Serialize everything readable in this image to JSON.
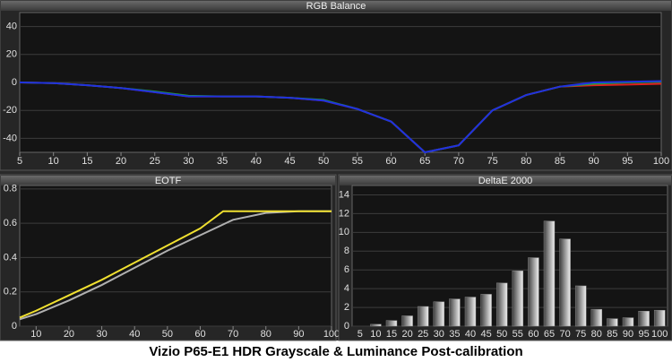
{
  "caption": "Vizio P65-E1 HDR Grayscale & Luminance Post-calibration",
  "chart_data": [
    {
      "type": "line",
      "title": "RGB Balance",
      "x": [
        5,
        10,
        15,
        20,
        25,
        30,
        35,
        40,
        45,
        50,
        55,
        60,
        65,
        70,
        75,
        80,
        85,
        90,
        95,
        100
      ],
      "series": [
        {
          "color": "#e02020",
          "values": [
            0,
            -0.5,
            -2,
            -4,
            -7,
            -10,
            -10,
            -10,
            -11,
            -13,
            -19,
            -28,
            -50,
            -45,
            -20,
            -9,
            -3,
            -2,
            -1.5,
            -1
          ]
        },
        {
          "color": "#20a040",
          "values": [
            0,
            -0.5,
            -2,
            -4,
            -6.5,
            -9.5,
            -10,
            -10,
            -11,
            -12.5,
            -19,
            -28,
            -50,
            -45,
            -20,
            -9,
            -3,
            -1,
            0,
            0.5
          ]
        },
        {
          "color": "#2030e0",
          "values": [
            0,
            -0.5,
            -2,
            -4,
            -7,
            -10,
            -10,
            -10,
            -11,
            -13,
            -19,
            -28,
            -50,
            -45,
            -20,
            -9,
            -3,
            0,
            0.5,
            1
          ]
        }
      ],
      "xlim": [
        5,
        100
      ],
      "xticks": [
        5,
        10,
        15,
        20,
        25,
        30,
        35,
        40,
        45,
        50,
        55,
        60,
        65,
        70,
        75,
        80,
        85,
        90,
        95,
        100
      ],
      "ylim": [
        -50,
        50
      ],
      "yticks": [
        -40,
        -20,
        0,
        20,
        40
      ],
      "grid": true
    },
    {
      "type": "line",
      "title": "EOTF",
      "series": [
        {
          "color": "#b0b0b0",
          "x": [
            5,
            10,
            20,
            30,
            40,
            50,
            60,
            70,
            80,
            90,
            100
          ],
          "values": [
            0.04,
            0.07,
            0.15,
            0.24,
            0.34,
            0.44,
            0.53,
            0.62,
            0.66,
            0.67,
            0.67
          ]
        },
        {
          "color": "#f0e030",
          "x": [
            5,
            10,
            20,
            30,
            40,
            50,
            60,
            67,
            70,
            80,
            90,
            100
          ],
          "values": [
            0.05,
            0.09,
            0.18,
            0.27,
            0.37,
            0.47,
            0.57,
            0.67,
            0.67,
            0.67,
            0.67,
            0.67
          ]
        }
      ],
      "xlim": [
        5,
        100
      ],
      "xticks": [
        10,
        20,
        30,
        40,
        50,
        60,
        70,
        80,
        90,
        100
      ],
      "ylim": [
        0,
        0.82
      ],
      "yticks": [
        0,
        0.2,
        0.4,
        0.6,
        0.8
      ],
      "grid": true
    },
    {
      "type": "bar",
      "title": "DeltaE 2000",
      "categories": [
        "5",
        "10",
        "15",
        "20",
        "25",
        "30",
        "35",
        "40",
        "45",
        "50",
        "55",
        "60",
        "65",
        "70",
        "75",
        "80",
        "85",
        "90",
        "95",
        "100"
      ],
      "values": [
        0,
        0.2,
        0.6,
        1.1,
        2.1,
        2.6,
        2.9,
        3.1,
        3.4,
        4.6,
        5.9,
        7.3,
        11.2,
        9.3,
        4.3,
        1.8,
        0.8,
        0.9,
        1.6,
        1.7
      ],
      "color": "#f0f0f0",
      "ylim": [
        0,
        15
      ],
      "yticks": [
        0,
        2,
        4,
        6,
        8,
        10,
        12,
        14
      ],
      "grid": true
    }
  ]
}
